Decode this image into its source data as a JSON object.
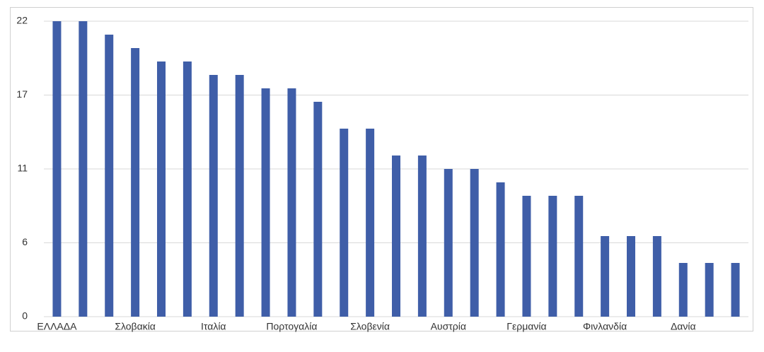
{
  "chart_data": {
    "type": "bar",
    "categories": [
      "ΕΛΛΑΔΑ",
      null,
      null,
      "Σλοβακία",
      null,
      null,
      "Ιταλία",
      null,
      null,
      "Πορτογαλία",
      null,
      null,
      "Σλοβενία",
      null,
      null,
      "Αυστρία",
      null,
      null,
      "Γερμανία",
      null,
      null,
      "Φινλανδία",
      null,
      null,
      "Δανία",
      null,
      null
    ],
    "values": [
      22,
      22,
      21,
      20,
      19,
      19,
      18,
      18,
      17,
      17,
      16,
      14,
      14,
      12,
      12,
      11,
      11,
      10,
      9,
      9,
      9,
      6,
      6,
      6,
      4,
      4,
      4
    ],
    "color": "#3f5ea8",
    "ylim": [
      0,
      22
    ],
    "yticks": [
      0,
      {
        "value": 5.5,
        "label": "6"
      },
      11,
      {
        "value": 16.5,
        "label": "17"
      },
      22
    ],
    "grid": true
  }
}
